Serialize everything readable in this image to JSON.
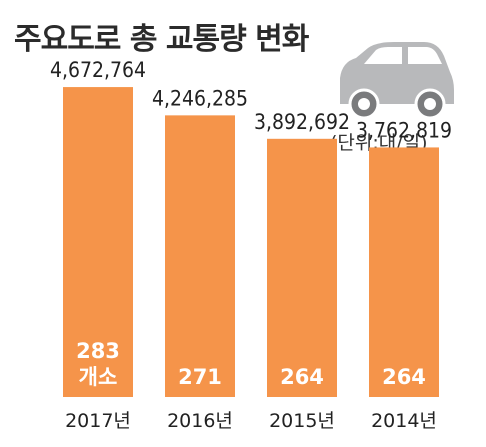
{
  "title": "주요도로 총 교통량 변화",
  "unit_label": "(단위:대/일)",
  "colors": {
    "bar": "#F5944A",
    "inner_text": "#ffffff",
    "car_body": "#B8B9BB",
    "car_window": "#ffffff",
    "car_wheel": "#7A7B7D"
  },
  "icon": "car-icon",
  "chart_data": {
    "type": "bar",
    "title": "주요도로 총 교통량 변화",
    "unit": "(단위:대/일)",
    "categories": [
      "2017년",
      "2016년",
      "2015년",
      "2014년"
    ],
    "values": [
      4672764,
      4246285,
      3892692,
      3762819
    ],
    "value_labels": [
      "4,672,764",
      "4,246,285",
      "3,892,692",
      "3,762,819"
    ],
    "inner_labels": [
      [
        "283",
        "개소"
      ],
      [
        "271"
      ],
      [
        "264"
      ],
      [
        "264"
      ]
    ],
    "xlabel": "",
    "ylabel": "",
    "ylim": [
      0,
      4900000
    ],
    "grid": false,
    "legend": "none"
  }
}
